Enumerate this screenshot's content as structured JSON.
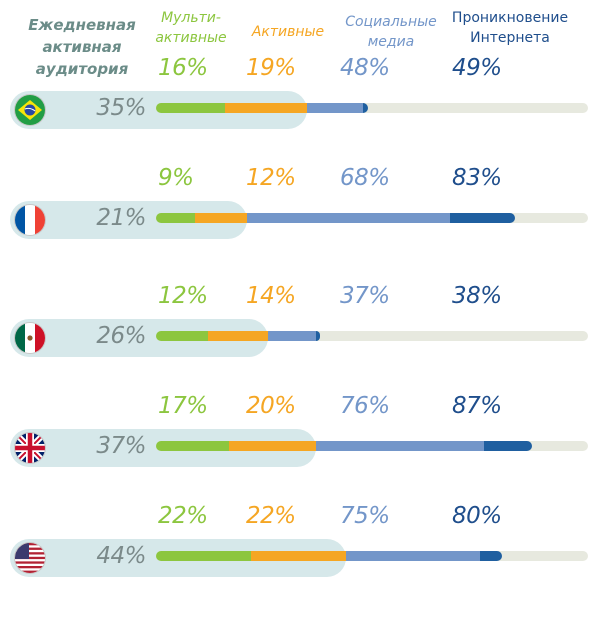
{
  "headers": {
    "daily": "Ежедневная активная аудитория",
    "multi": "Мульти- активные",
    "active": "Активные",
    "social": "Социальные медиа",
    "internet": "Проникновение Интернета"
  },
  "colors": {
    "multi": "#8cc63f",
    "active": "#f5a623",
    "social": "#7396c9",
    "internet": "#1f5fa0",
    "track": "#e7e9df",
    "pill": "#d6e8ea"
  },
  "chart_data": {
    "type": "bar",
    "orientation": "horizontal-stacked-overlay",
    "series": [
      {
        "name": "Мульти- активные",
        "key": "multi"
      },
      {
        "name": "Активные",
        "key": "active"
      },
      {
        "name": "Социальные медиа",
        "key": "social"
      },
      {
        "name": "Проникновение Интернета",
        "key": "internet"
      }
    ],
    "daily_series_name": "Ежедневная активная аудитория",
    "rows": [
      {
        "country_flag": "brazil-flag-icon",
        "daily": 35,
        "multi": 16,
        "active": 19,
        "social": 48,
        "internet": 49,
        "daily_label": "35%",
        "multi_label": "16%",
        "active_label": "19%",
        "social_label": "48%",
        "internet_label": "49%"
      },
      {
        "country_flag": "france-flag-icon",
        "daily": 21,
        "multi": 9,
        "active": 12,
        "social": 68,
        "internet": 83,
        "daily_label": "21%",
        "multi_label": "9%",
        "active_label": "12%",
        "social_label": "68%",
        "internet_label": "83%"
      },
      {
        "country_flag": "mexico-flag-icon",
        "daily": 26,
        "multi": 12,
        "active": 14,
        "social": 37,
        "internet": 38,
        "daily_label": "26%",
        "multi_label": "12%",
        "active_label": "14%",
        "social_label": "37%",
        "internet_label": "38%"
      },
      {
        "country_flag": "uk-flag-icon",
        "daily": 37,
        "multi": 17,
        "active": 20,
        "social": 76,
        "internet": 87,
        "daily_label": "37%",
        "multi_label": "17%",
        "active_label": "20%",
        "social_label": "76%",
        "internet_label": "87%"
      },
      {
        "country_flag": "usa-flag-icon",
        "daily": 44,
        "multi": 22,
        "active": 22,
        "social": 75,
        "internet": 80,
        "daily_label": "44%",
        "multi_label": "22%",
        "active_label": "22%",
        "social_label": "75%",
        "internet_label": "80%"
      }
    ],
    "xlim": [
      0,
      100
    ]
  }
}
